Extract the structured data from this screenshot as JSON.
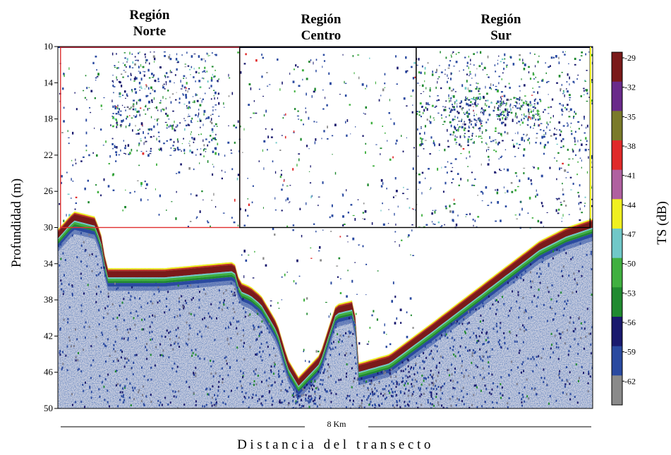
{
  "chart_data": {
    "type": "heatmap",
    "title": "",
    "xlabel": "Distancia del transecto",
    "ylabel": "Profundidad (m)",
    "distance_label": "8 Km",
    "y_ticks": [
      10,
      14,
      18,
      22,
      26,
      30,
      34,
      38,
      42,
      46,
      50
    ],
    "ylim": [
      10,
      50
    ],
    "regions": [
      {
        "name": "Región Norte",
        "line1": "Región",
        "line2": "Norte",
        "depth_range": [
          10,
          30
        ],
        "color": "#e03030"
      },
      {
        "name": "Región Centro",
        "line1": "Región",
        "line2": "Centro",
        "depth_range": [
          10,
          30
        ],
        "color": "#000000"
      },
      {
        "name": "Región Sur",
        "line1": "Región",
        "line2": "Sur",
        "depth_range": [
          10,
          30
        ],
        "color": "#000000"
      }
    ],
    "colorbar": {
      "label": "TS (dB)",
      "ticks": [
        "-29",
        "-32",
        "-35",
        "-38",
        "-41",
        "-44",
        "-47",
        "-50",
        "-53",
        "-56",
        "-59",
        "-62"
      ],
      "colors": [
        "#7a1a1a",
        "#6a2a8a",
        "#7a7a2a",
        "#e02a2a",
        "#b060a0",
        "#f0f020",
        "#70c8c8",
        "#40b040",
        "#208a30",
        "#1a1a6e",
        "#2a4aa0",
        "#8a8a8a"
      ]
    },
    "seabed_profile": {
      "x_fraction": [
        0.0,
        0.03,
        0.07,
        0.085,
        0.09,
        0.2,
        0.33,
        0.34,
        0.36,
        0.38,
        0.41,
        0.43,
        0.45,
        0.49,
        0.52,
        0.555,
        0.56,
        0.62,
        0.7,
        0.8,
        0.9,
        0.95,
        1.0
      ],
      "depth_m": [
        30.2,
        28.2,
        28.8,
        31.5,
        34.5,
        34.5,
        33.8,
        36.0,
        36.5,
        37.5,
        40.5,
        44.5,
        46.5,
        44.0,
        38.5,
        38.0,
        45.0,
        44.0,
        40.5,
        36.0,
        31.5,
        30.0,
        29.0
      ]
    }
  }
}
